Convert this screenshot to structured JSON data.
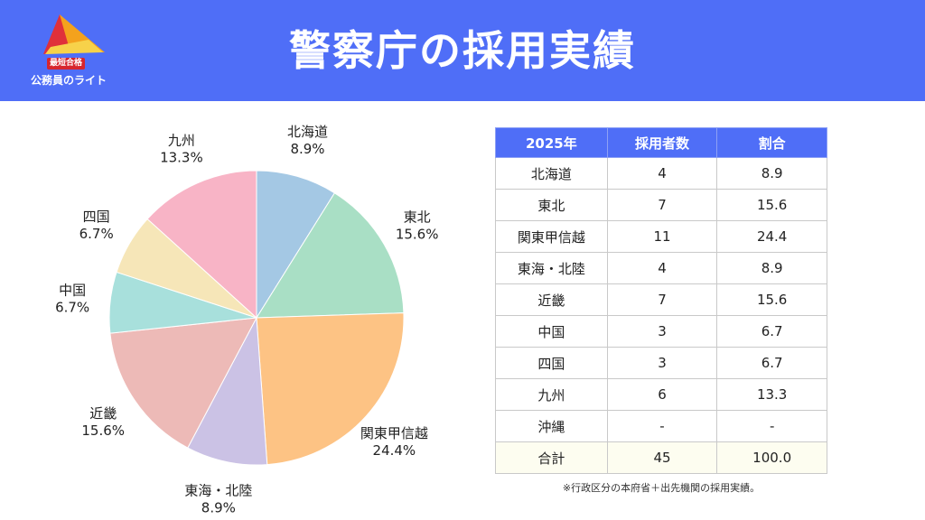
{
  "header": {
    "title": "警察庁の採用実績",
    "logo_badge": "最短合格",
    "logo_brand": "公務員のライト",
    "bg_color": "#4f6ef7"
  },
  "chart_data": {
    "type": "pie",
    "slices": [
      {
        "label": "北海道",
        "pct_label": "8.9%",
        "value": 8.9,
        "color": "#a4c8e4"
      },
      {
        "label": "東北",
        "pct_label": "15.6%",
        "value": 15.6,
        "color": "#a9dfc5"
      },
      {
        "label": "関東甲信越",
        "pct_label": "24.4%",
        "value": 24.4,
        "color": "#fdc384"
      },
      {
        "label": "東海・北陸",
        "pct_label": "8.9%",
        "value": 8.9,
        "color": "#cbc2e5"
      },
      {
        "label": "近畿",
        "pct_label": "15.6%",
        "value": 15.6,
        "color": "#edbab7"
      },
      {
        "label": "中国",
        "pct_label": "6.7%",
        "value": 6.7,
        "color": "#a8e0dc"
      },
      {
        "label": "四国",
        "pct_label": "6.7%",
        "value": 6.7,
        "color": "#f6e6b8"
      },
      {
        "label": "九州",
        "pct_label": "13.3%",
        "value": 13.3,
        "color": "#f8b4c6"
      }
    ]
  },
  "table": {
    "headers": [
      "2025年",
      "採用者数",
      "割合"
    ],
    "rows": [
      [
        "北海道",
        "4",
        "8.9"
      ],
      [
        "東北",
        "7",
        "15.6"
      ],
      [
        "関東甲信越",
        "11",
        "24.4"
      ],
      [
        "東海・北陸",
        "4",
        "8.9"
      ],
      [
        "近畿",
        "7",
        "15.6"
      ],
      [
        "中国",
        "3",
        "6.7"
      ],
      [
        "四国",
        "3",
        "6.7"
      ],
      [
        "九州",
        "6",
        "13.3"
      ],
      [
        "沖縄",
        "-",
        "-"
      ]
    ],
    "total": [
      "合計",
      "45",
      "100.0"
    ]
  },
  "note": "※行政区分の本府省＋出先機関の採用実績。"
}
